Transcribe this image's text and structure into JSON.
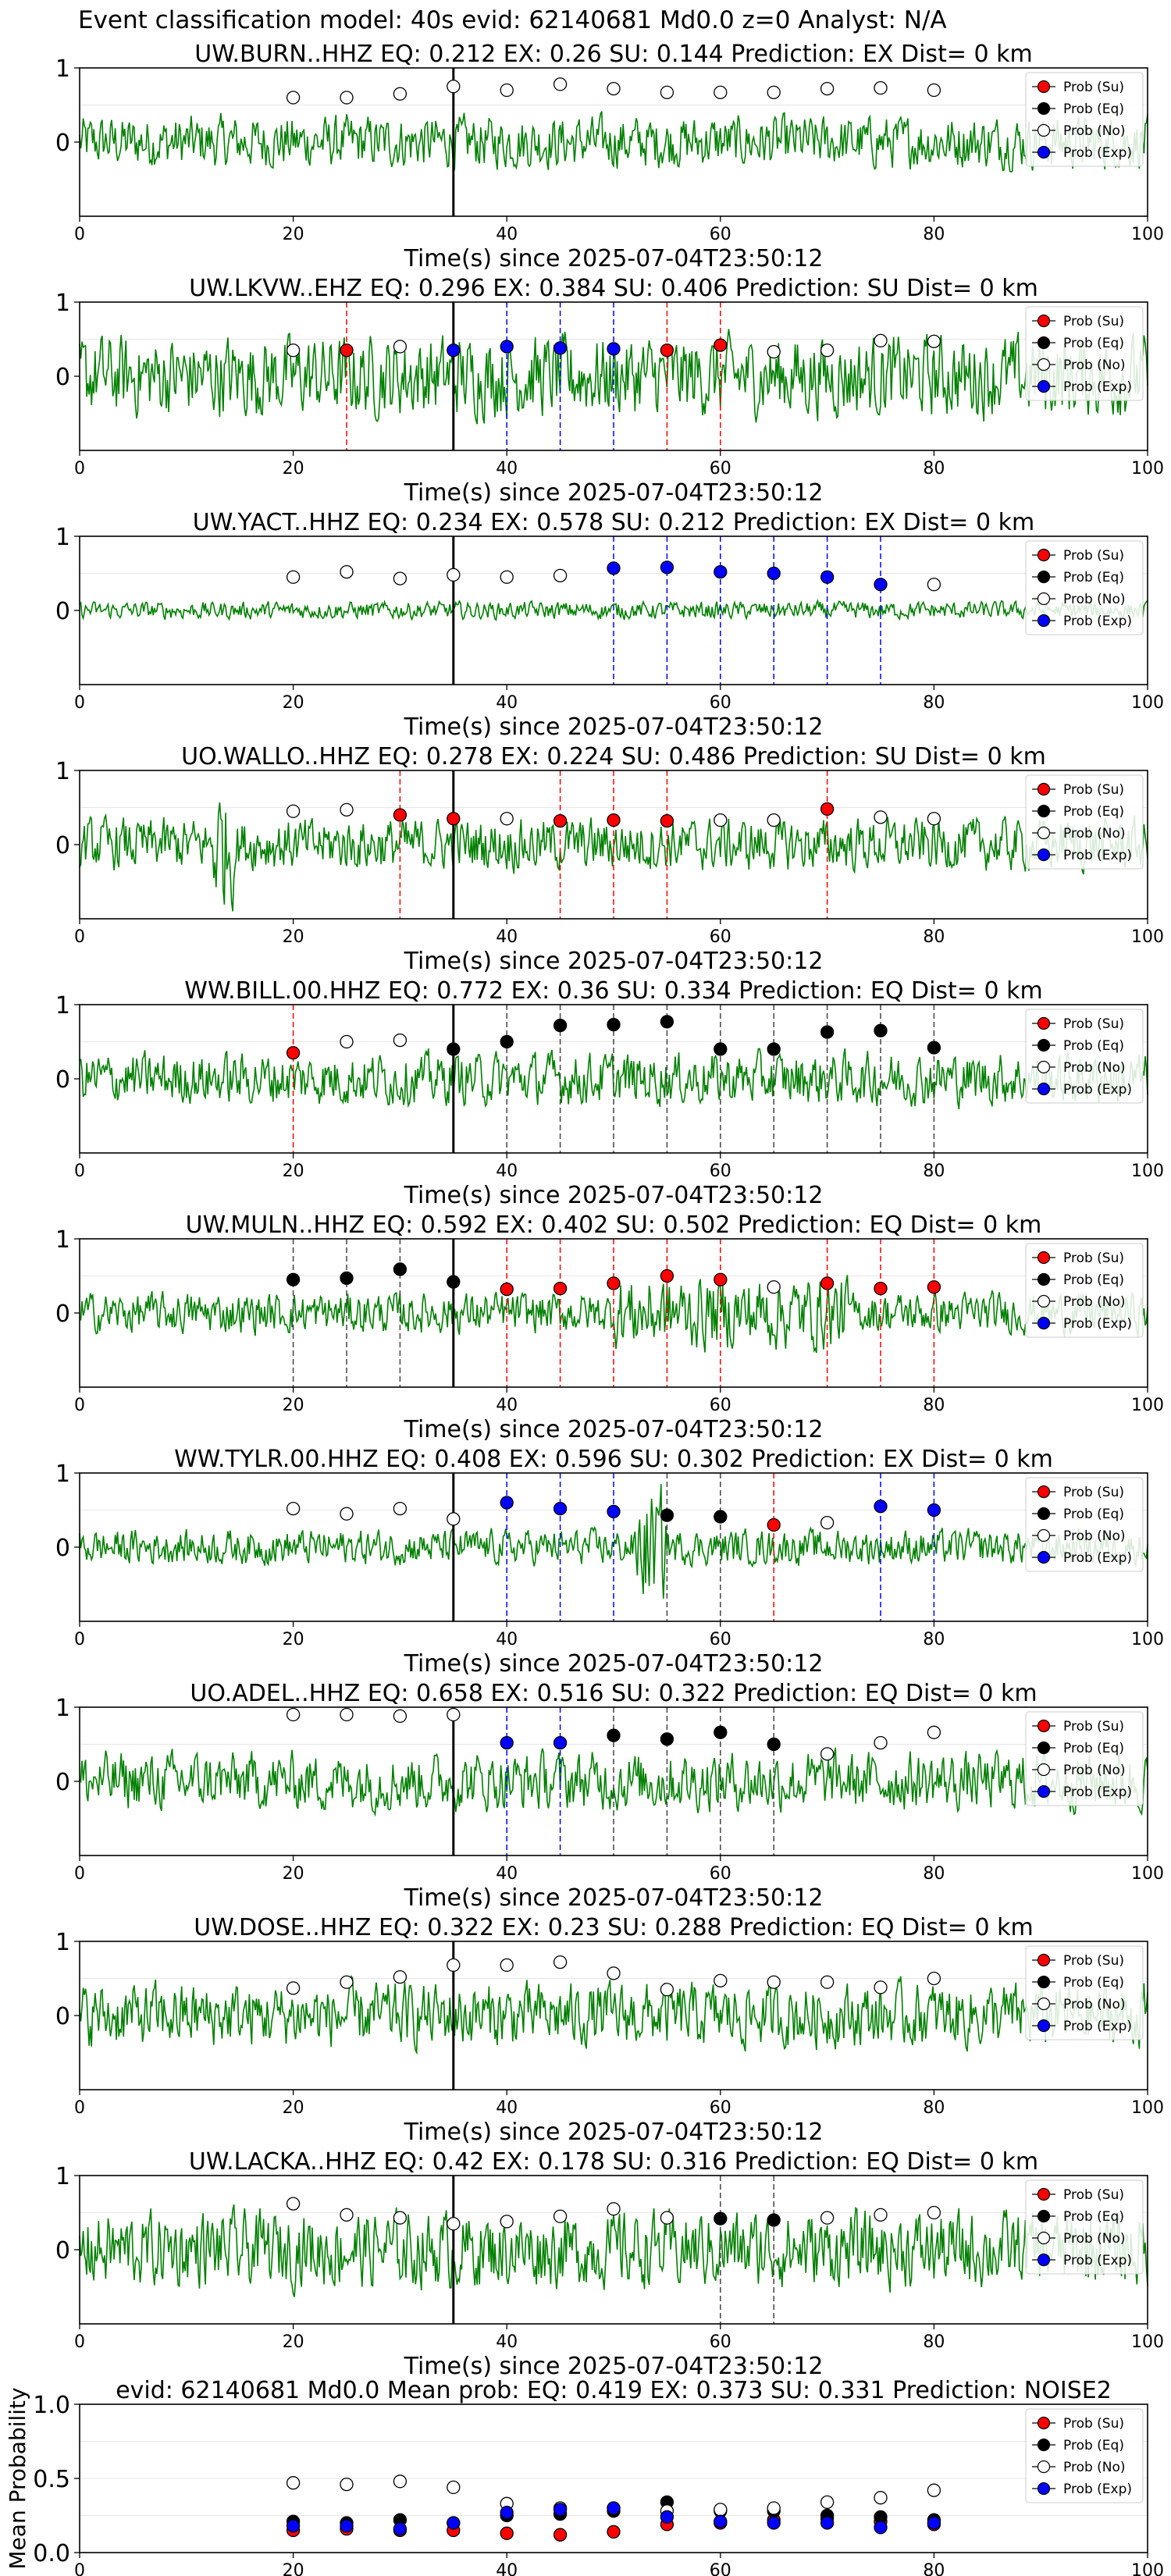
{
  "header": "Event classification model: 40s evid: 62140681 Md0.0 z=0 Analyst: N/A",
  "colors": {
    "waveform": "#008000",
    "su": "#ff0000",
    "eq": "#000000",
    "no": "#ffffff",
    "exp": "#0000ff",
    "pick_line": "#000000",
    "grid": "#e6e6e6"
  },
  "legend_labels": [
    "Prob (Su)",
    "Prob (Eq)",
    "Prob (No)",
    "Prob (Exp)"
  ],
  "chart_data": [
    {
      "type": "line",
      "title": "UW.BURN..HHZ    EQ: 0.212  EX: 0.26  SU: 0.144   Prediction: EX     Dist= 0 km",
      "xlabel": "Time(s) since 2025-07-04T23:50:12",
      "ylabel": "",
      "xlim": [
        0,
        100
      ],
      "ylim": [
        -1,
        1
      ],
      "xticks": [
        "0",
        "20",
        "40",
        "60",
        "80",
        "100"
      ],
      "yticks": [
        "1",
        "0"
      ],
      "pick_time": 35,
      "waveform_amplitude": 0.45,
      "points": [
        {
          "t": 20,
          "p": 0.6,
          "cls": "no"
        },
        {
          "t": 25,
          "p": 0.6,
          "cls": "no"
        },
        {
          "t": 30,
          "p": 0.65,
          "cls": "no"
        },
        {
          "t": 35,
          "p": 0.75,
          "cls": "no"
        },
        {
          "t": 40,
          "p": 0.7,
          "cls": "no"
        },
        {
          "t": 45,
          "p": 0.78,
          "cls": "no"
        },
        {
          "t": 50,
          "p": 0.72,
          "cls": "no"
        },
        {
          "t": 55,
          "p": 0.67,
          "cls": "no"
        },
        {
          "t": 60,
          "p": 0.67,
          "cls": "no"
        },
        {
          "t": 65,
          "p": 0.67,
          "cls": "no"
        },
        {
          "t": 70,
          "p": 0.72,
          "cls": "no"
        },
        {
          "t": 75,
          "p": 0.73,
          "cls": "no"
        },
        {
          "t": 80,
          "p": 0.7,
          "cls": "no"
        }
      ]
    },
    {
      "type": "line",
      "title": "UW.LKVW..EHZ   EQ: 0.296  EX: 0.384  SU: 0.406   Prediction: SU    Dist= 0 km",
      "xlabel": "Time(s) since 2025-07-04T23:50:12",
      "ylabel": "",
      "xlim": [
        0,
        100
      ],
      "ylim": [
        -1,
        1
      ],
      "xticks": [
        "0",
        "20",
        "40",
        "60",
        "80",
        "100"
      ],
      "yticks": [
        "1",
        "0"
      ],
      "pick_time": 35,
      "waveform_amplitude": 0.7,
      "points": [
        {
          "t": 20,
          "p": 0.35,
          "cls": "no"
        },
        {
          "t": 25,
          "p": 0.35,
          "cls": "su"
        },
        {
          "t": 30,
          "p": 0.4,
          "cls": "no"
        },
        {
          "t": 35,
          "p": 0.35,
          "cls": "exp"
        },
        {
          "t": 40,
          "p": 0.4,
          "cls": "exp"
        },
        {
          "t": 45,
          "p": 0.38,
          "cls": "exp"
        },
        {
          "t": 50,
          "p": 0.37,
          "cls": "exp"
        },
        {
          "t": 55,
          "p": 0.35,
          "cls": "su"
        },
        {
          "t": 60,
          "p": 0.42,
          "cls": "su"
        },
        {
          "t": 65,
          "p": 0.33,
          "cls": "no"
        },
        {
          "t": 70,
          "p": 0.35,
          "cls": "no"
        },
        {
          "t": 75,
          "p": 0.48,
          "cls": "no"
        },
        {
          "t": 80,
          "p": 0.47,
          "cls": "no"
        }
      ]
    },
    {
      "type": "line",
      "title": "UW.YACT..HHZ   EQ: 0.234  EX: 0.578  SU: 0.212   Prediction: EX     Dist= 0 km",
      "xlabel": "Time(s) since 2025-07-04T23:50:12",
      "ylabel": "",
      "xlim": [
        0,
        100
      ],
      "ylim": [
        -1,
        1
      ],
      "xticks": [
        "0",
        "20",
        "40",
        "60",
        "80",
        "100"
      ],
      "yticks": [
        "1",
        "0"
      ],
      "pick_time": 35,
      "waveform_amplitude": 0.15,
      "points": [
        {
          "t": 20,
          "p": 0.45,
          "cls": "no"
        },
        {
          "t": 25,
          "p": 0.52,
          "cls": "no"
        },
        {
          "t": 30,
          "p": 0.43,
          "cls": "no"
        },
        {
          "t": 35,
          "p": 0.48,
          "cls": "no"
        },
        {
          "t": 40,
          "p": 0.45,
          "cls": "no"
        },
        {
          "t": 45,
          "p": 0.47,
          "cls": "no"
        },
        {
          "t": 50,
          "p": 0.57,
          "cls": "exp"
        },
        {
          "t": 55,
          "p": 0.58,
          "cls": "exp"
        },
        {
          "t": 60,
          "p": 0.52,
          "cls": "exp"
        },
        {
          "t": 65,
          "p": 0.5,
          "cls": "exp"
        },
        {
          "t": 70,
          "p": 0.45,
          "cls": "exp"
        },
        {
          "t": 75,
          "p": 0.35,
          "cls": "exp"
        },
        {
          "t": 80,
          "p": 0.35,
          "cls": "no"
        }
      ]
    },
    {
      "type": "line",
      "title": "UO.WALLO..HHZ   EQ: 0.278  EX: 0.224  SU: 0.486   Prediction: SU     Dist= 0 km",
      "xlabel": "Time(s) since 2025-07-04T23:50:12",
      "ylabel": "",
      "xlim": [
        0,
        100
      ],
      "ylim": [
        -1,
        1
      ],
      "xticks": [
        "0",
        "20",
        "40",
        "60",
        "80",
        "100"
      ],
      "yticks": [
        "1",
        "0"
      ],
      "pick_time": 35,
      "waveform_amplitude": 0.45,
      "points": [
        {
          "t": 20,
          "p": 0.45,
          "cls": "no"
        },
        {
          "t": 25,
          "p": 0.47,
          "cls": "no"
        },
        {
          "t": 30,
          "p": 0.4,
          "cls": "su"
        },
        {
          "t": 35,
          "p": 0.35,
          "cls": "su"
        },
        {
          "t": 40,
          "p": 0.35,
          "cls": "no"
        },
        {
          "t": 45,
          "p": 0.32,
          "cls": "su"
        },
        {
          "t": 50,
          "p": 0.33,
          "cls": "su"
        },
        {
          "t": 55,
          "p": 0.32,
          "cls": "su"
        },
        {
          "t": 60,
          "p": 0.33,
          "cls": "no"
        },
        {
          "t": 65,
          "p": 0.33,
          "cls": "no"
        },
        {
          "t": 70,
          "p": 0.48,
          "cls": "su"
        },
        {
          "t": 75,
          "p": 0.37,
          "cls": "no"
        },
        {
          "t": 80,
          "p": 0.35,
          "cls": "no"
        }
      ]
    },
    {
      "type": "line",
      "title": "WW.BILL.00.HHZ   EQ: 0.772  EX: 0.36  SU: 0.334   Prediction: EQ    Dist= 0 km",
      "xlabel": "Time(s) since 2025-07-04T23:50:12",
      "ylabel": "",
      "xlim": [
        0,
        100
      ],
      "ylim": [
        -1,
        1
      ],
      "xticks": [
        "0",
        "20",
        "40",
        "60",
        "80",
        "100"
      ],
      "yticks": [
        "1",
        "0"
      ],
      "pick_time": 35,
      "waveform_amplitude": 0.45,
      "points": [
        {
          "t": 20,
          "p": 0.35,
          "cls": "su"
        },
        {
          "t": 25,
          "p": 0.5,
          "cls": "no"
        },
        {
          "t": 30,
          "p": 0.52,
          "cls": "no"
        },
        {
          "t": 35,
          "p": 0.4,
          "cls": "eq"
        },
        {
          "t": 40,
          "p": 0.5,
          "cls": "eq"
        },
        {
          "t": 45,
          "p": 0.72,
          "cls": "eq"
        },
        {
          "t": 50,
          "p": 0.73,
          "cls": "eq"
        },
        {
          "t": 55,
          "p": 0.77,
          "cls": "eq"
        },
        {
          "t": 60,
          "p": 0.4,
          "cls": "eq"
        },
        {
          "t": 65,
          "p": 0.4,
          "cls": "eq"
        },
        {
          "t": 70,
          "p": 0.63,
          "cls": "eq"
        },
        {
          "t": 75,
          "p": 0.65,
          "cls": "eq"
        },
        {
          "t": 80,
          "p": 0.42,
          "cls": "eq"
        }
      ]
    },
    {
      "type": "line",
      "title": "UW.MULN..HHZ   EQ: 0.592  EX: 0.402  SU: 0.502   Prediction: EQ     Dist= 0 km",
      "xlabel": "Time(s) since 2025-07-04T23:50:12",
      "ylabel": "",
      "xlim": [
        0,
        100
      ],
      "ylim": [
        -1,
        1
      ],
      "xticks": [
        "0",
        "20",
        "40",
        "60",
        "80",
        "100"
      ],
      "yticks": [
        "1",
        "0"
      ],
      "pick_time": 35,
      "waveform_amplitude": 0.35,
      "points": [
        {
          "t": 20,
          "p": 0.45,
          "cls": "eq"
        },
        {
          "t": 25,
          "p": 0.47,
          "cls": "eq"
        },
        {
          "t": 30,
          "p": 0.59,
          "cls": "eq"
        },
        {
          "t": 35,
          "p": 0.42,
          "cls": "eq"
        },
        {
          "t": 40,
          "p": 0.32,
          "cls": "su"
        },
        {
          "t": 45,
          "p": 0.33,
          "cls": "su"
        },
        {
          "t": 50,
          "p": 0.4,
          "cls": "su"
        },
        {
          "t": 55,
          "p": 0.5,
          "cls": "su"
        },
        {
          "t": 60,
          "p": 0.45,
          "cls": "su"
        },
        {
          "t": 65,
          "p": 0.35,
          "cls": "no"
        },
        {
          "t": 70,
          "p": 0.4,
          "cls": "su"
        },
        {
          "t": 75,
          "p": 0.33,
          "cls": "su"
        },
        {
          "t": 80,
          "p": 0.35,
          "cls": "su"
        }
      ]
    },
    {
      "type": "line",
      "title": "WW.TYLR.00.HHZ   EQ: 0.408  EX: 0.596  SU: 0.302   Prediction: EX     Dist= 0 km",
      "xlabel": "Time(s) since 2025-07-04T23:50:12",
      "ylabel": "",
      "xlim": [
        0,
        100
      ],
      "ylim": [
        -1,
        1
      ],
      "xticks": [
        "0",
        "20",
        "40",
        "60",
        "80",
        "100"
      ],
      "yticks": [
        "1",
        "0"
      ],
      "pick_time": 35,
      "waveform_amplitude": 0.3,
      "points": [
        {
          "t": 20,
          "p": 0.52,
          "cls": "no"
        },
        {
          "t": 25,
          "p": 0.45,
          "cls": "no"
        },
        {
          "t": 30,
          "p": 0.52,
          "cls": "no"
        },
        {
          "t": 35,
          "p": 0.38,
          "cls": "no"
        },
        {
          "t": 40,
          "p": 0.6,
          "cls": "exp"
        },
        {
          "t": 45,
          "p": 0.52,
          "cls": "exp"
        },
        {
          "t": 50,
          "p": 0.48,
          "cls": "exp"
        },
        {
          "t": 55,
          "p": 0.43,
          "cls": "eq"
        },
        {
          "t": 60,
          "p": 0.41,
          "cls": "eq"
        },
        {
          "t": 65,
          "p": 0.3,
          "cls": "su"
        },
        {
          "t": 70,
          "p": 0.33,
          "cls": "no"
        },
        {
          "t": 75,
          "p": 0.55,
          "cls": "exp"
        },
        {
          "t": 80,
          "p": 0.5,
          "cls": "exp"
        }
      ]
    },
    {
      "type": "line",
      "title": "UO.ADEL..HHZ   EQ: 0.658  EX: 0.516  SU: 0.322   Prediction: EQ     Dist= 0 km",
      "xlabel": "Time(s) since 2025-07-04T23:50:12",
      "ylabel": "",
      "xlim": [
        0,
        100
      ],
      "ylim": [
        -1,
        1
      ],
      "xticks": [
        "0",
        "20",
        "40",
        "60",
        "80",
        "100"
      ],
      "yticks": [
        "1",
        "0"
      ],
      "pick_time": 35,
      "waveform_amplitude": 0.5,
      "points": [
        {
          "t": 20,
          "p": 0.9,
          "cls": "no"
        },
        {
          "t": 25,
          "p": 0.9,
          "cls": "no"
        },
        {
          "t": 30,
          "p": 0.88,
          "cls": "no"
        },
        {
          "t": 35,
          "p": 0.9,
          "cls": "no"
        },
        {
          "t": 40,
          "p": 0.52,
          "cls": "exp"
        },
        {
          "t": 45,
          "p": 0.52,
          "cls": "exp"
        },
        {
          "t": 50,
          "p": 0.62,
          "cls": "eq"
        },
        {
          "t": 55,
          "p": 0.57,
          "cls": "eq"
        },
        {
          "t": 60,
          "p": 0.66,
          "cls": "eq"
        },
        {
          "t": 65,
          "p": 0.5,
          "cls": "eq"
        },
        {
          "t": 70,
          "p": 0.37,
          "cls": "no"
        },
        {
          "t": 75,
          "p": 0.52,
          "cls": "no"
        },
        {
          "t": 80,
          "p": 0.66,
          "cls": "no"
        }
      ]
    },
    {
      "type": "line",
      "title": "UW.DOSE..HHZ   EQ: 0.322  EX: 0.23  SU: 0.288   Prediction: EQ     Dist= 0 km",
      "xlabel": "Time(s) since 2025-07-04T23:50:12",
      "ylabel": "",
      "xlim": [
        0,
        100
      ],
      "ylim": [
        -1,
        1
      ],
      "xticks": [
        "0",
        "20",
        "40",
        "60",
        "80",
        "100"
      ],
      "yticks": [
        "1",
        "0"
      ],
      "pick_time": 35,
      "waveform_amplitude": 0.55,
      "points": [
        {
          "t": 20,
          "p": 0.37,
          "cls": "no"
        },
        {
          "t": 25,
          "p": 0.45,
          "cls": "no"
        },
        {
          "t": 30,
          "p": 0.52,
          "cls": "no"
        },
        {
          "t": 35,
          "p": 0.68,
          "cls": "no"
        },
        {
          "t": 40,
          "p": 0.68,
          "cls": "no"
        },
        {
          "t": 45,
          "p": 0.72,
          "cls": "no"
        },
        {
          "t": 50,
          "p": 0.57,
          "cls": "no"
        },
        {
          "t": 55,
          "p": 0.35,
          "cls": "no"
        },
        {
          "t": 60,
          "p": 0.47,
          "cls": "no"
        },
        {
          "t": 65,
          "p": 0.45,
          "cls": "no"
        },
        {
          "t": 70,
          "p": 0.45,
          "cls": "no"
        },
        {
          "t": 75,
          "p": 0.38,
          "cls": "no"
        },
        {
          "t": 80,
          "p": 0.5,
          "cls": "no"
        }
      ]
    },
    {
      "type": "line",
      "title": "UW.LACKA..HHZ   EQ: 0.42  EX: 0.178  SU: 0.316   Prediction: EQ     Dist= 0 km",
      "xlabel": "Time(s) since 2025-07-04T23:50:12",
      "ylabel": "",
      "xlim": [
        0,
        100
      ],
      "ylim": [
        -1,
        1
      ],
      "xticks": [
        "0",
        "20",
        "40",
        "60",
        "80",
        "100"
      ],
      "yticks": [
        "1",
        "0"
      ],
      "pick_time": 35,
      "waveform_amplitude": 0.65,
      "points": [
        {
          "t": 20,
          "p": 0.62,
          "cls": "no"
        },
        {
          "t": 25,
          "p": 0.47,
          "cls": "no"
        },
        {
          "t": 30,
          "p": 0.43,
          "cls": "no"
        },
        {
          "t": 35,
          "p": 0.35,
          "cls": "no"
        },
        {
          "t": 40,
          "p": 0.38,
          "cls": "no"
        },
        {
          "t": 45,
          "p": 0.45,
          "cls": "no"
        },
        {
          "t": 50,
          "p": 0.55,
          "cls": "no"
        },
        {
          "t": 55,
          "p": 0.43,
          "cls": "no"
        },
        {
          "t": 60,
          "p": 0.42,
          "cls": "eq"
        },
        {
          "t": 65,
          "p": 0.4,
          "cls": "eq"
        },
        {
          "t": 70,
          "p": 0.43,
          "cls": "no"
        },
        {
          "t": 75,
          "p": 0.47,
          "cls": "no"
        },
        {
          "t": 80,
          "p": 0.5,
          "cls": "no"
        }
      ]
    },
    {
      "type": "scatter",
      "title": "evid: 62140681  Md0.0   Mean prob:   EQ: 0.419  EX: 0.373  SU: 0.331   Prediction: NOISE2",
      "xlabel": "",
      "ylabel": "Mean Probability",
      "xlim": [
        0,
        100
      ],
      "ylim": [
        0,
        1
      ],
      "xticks": [
        "0",
        "20",
        "40",
        "60",
        "80",
        "100"
      ],
      "yticks": [
        "1.0",
        "0.5",
        "0.0"
      ],
      "x": [
        20,
        25,
        30,
        35,
        40,
        45,
        50,
        55,
        60,
        65,
        70,
        75,
        80
      ],
      "series": [
        {
          "name": "Prob (Su)",
          "cls": "su",
          "values": [
            0.15,
            0.16,
            0.15,
            0.15,
            0.13,
            0.12,
            0.14,
            0.19,
            0.2,
            0.22,
            0.23,
            0.21,
            0.19
          ]
        },
        {
          "name": "Prob (Eq)",
          "cls": "eq",
          "values": [
            0.21,
            0.2,
            0.22,
            0.2,
            0.25,
            0.26,
            0.28,
            0.34,
            0.28,
            0.28,
            0.25,
            0.24,
            0.22
          ]
        },
        {
          "name": "Prob (No)",
          "cls": "no",
          "values": [
            0.47,
            0.46,
            0.48,
            0.44,
            0.33,
            0.3,
            0.3,
            0.28,
            0.29,
            0.3,
            0.34,
            0.37,
            0.42
          ]
        },
        {
          "name": "Prob (Exp)",
          "cls": "exp",
          "values": [
            0.18,
            0.18,
            0.16,
            0.2,
            0.27,
            0.29,
            0.3,
            0.24,
            0.21,
            0.2,
            0.2,
            0.17,
            0.2
          ]
        }
      ]
    }
  ]
}
